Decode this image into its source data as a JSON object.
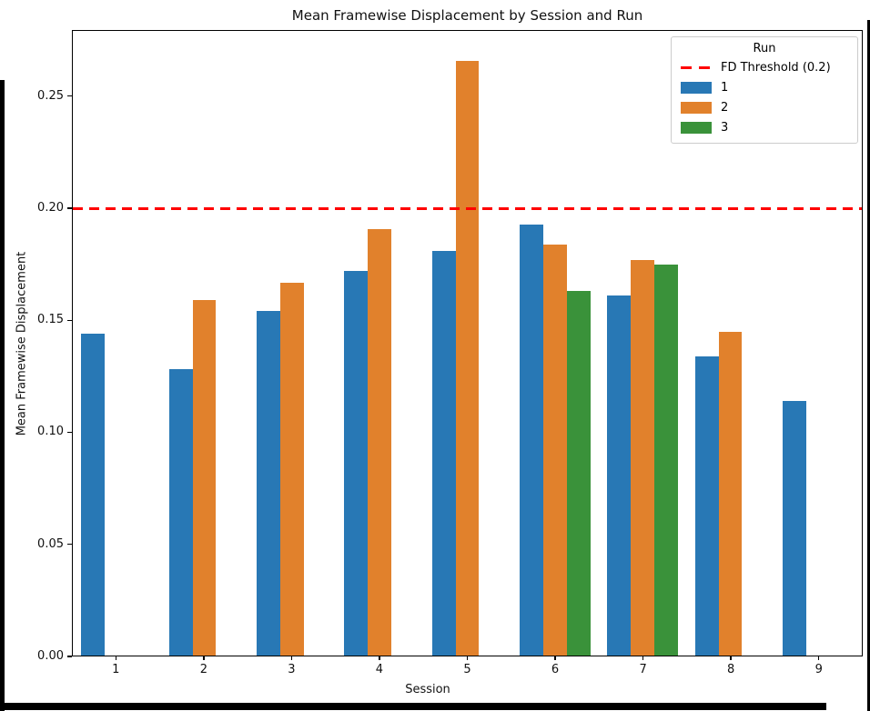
{
  "window": {
    "background": "#ffffff",
    "frame_color": "#000000"
  },
  "chart_data": {
    "type": "bar",
    "title": "Mean Framewise Displacement by Session and Run",
    "xlabel": "Session",
    "ylabel": "Mean Framewise Displacement",
    "categories": [
      "1",
      "2",
      "3",
      "4",
      "5",
      "6",
      "7",
      "8",
      "9"
    ],
    "series": [
      {
        "name": "1",
        "color": "#2878b5",
        "values": [
          0.144,
          0.128,
          0.154,
          0.172,
          0.181,
          0.193,
          0.161,
          0.134,
          0.114
        ]
      },
      {
        "name": "2",
        "color": "#e1812c",
        "values": [
          null,
          0.159,
          0.167,
          0.191,
          0.266,
          0.184,
          0.177,
          0.145,
          null
        ]
      },
      {
        "name": "3",
        "color": "#3a923a",
        "values": [
          null,
          null,
          null,
          null,
          null,
          0.163,
          0.175,
          null,
          null
        ]
      }
    ],
    "threshold": {
      "label": "FD Threshold (0.2)",
      "value": 0.2,
      "color": "#ff0000",
      "style": "dashed"
    },
    "yticks": [
      "0.00",
      "0.05",
      "0.10",
      "0.15",
      "0.20",
      "0.25"
    ],
    "ylim": [
      0,
      0.2795
    ],
    "grid": false,
    "legend": {
      "title": "Run",
      "position": "upper right"
    }
  }
}
